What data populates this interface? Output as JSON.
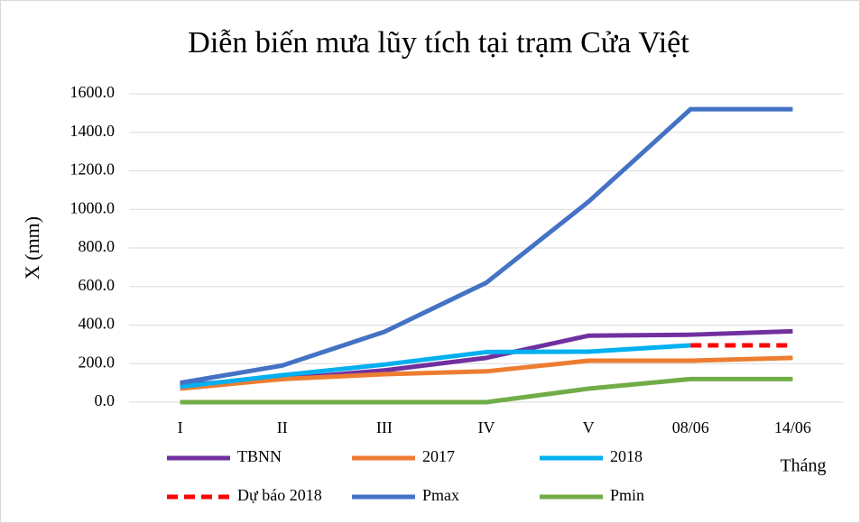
{
  "chart_data": {
    "type": "line",
    "title": "Diễn biến mưa lũy tích tại trạm Cửa Việt",
    "y_label": "X (mm)",
    "x_label": "Tháng",
    "categories": [
      "I",
      "II",
      "III",
      "IV",
      "V",
      "08/06",
      "14/06"
    ],
    "series": [
      {
        "name": "TBNN",
        "color": "#7030a0",
        "values": [
          90,
          120,
          165,
          230,
          345,
          350,
          368
        ]
      },
      {
        "name": "2017",
        "color": "#ed7d31",
        "values": [
          70,
          120,
          145,
          160,
          215,
          215,
          230
        ]
      },
      {
        "name": "2018",
        "color": "#00b0f0",
        "values": [
          80,
          140,
          195,
          260,
          262,
          295,
          null
        ]
      },
      {
        "name": "Dự báo 2018",
        "color": "#ff0000",
        "dashed": true,
        "values": [
          null,
          null,
          null,
          null,
          null,
          295,
          295
        ]
      },
      {
        "name": "Pmax",
        "color": "#4472c4",
        "values": [
          100,
          190,
          365,
          620,
          1040,
          1520,
          1520
        ]
      },
      {
        "name": "Pmin",
        "color": "#70ad47",
        "values": [
          0,
          0,
          0,
          0,
          70,
          120,
          120
        ]
      }
    ],
    "ylim": [
      0,
      1600
    ],
    "yticks": [
      {
        "value": 0,
        "label": "0.0"
      },
      {
        "value": 200,
        "label": "200.0"
      },
      {
        "value": 400,
        "label": "400.0"
      },
      {
        "value": 600,
        "label": "600.0"
      },
      {
        "value": 800,
        "label": "800.0"
      },
      {
        "value": 1000,
        "label": "1000.0"
      },
      {
        "value": 1200,
        "label": "1200.0"
      },
      {
        "value": 1400,
        "label": "1400.0"
      },
      {
        "value": 1600,
        "label": "1600.0"
      }
    ],
    "grid": true,
    "legend": "bottom"
  }
}
